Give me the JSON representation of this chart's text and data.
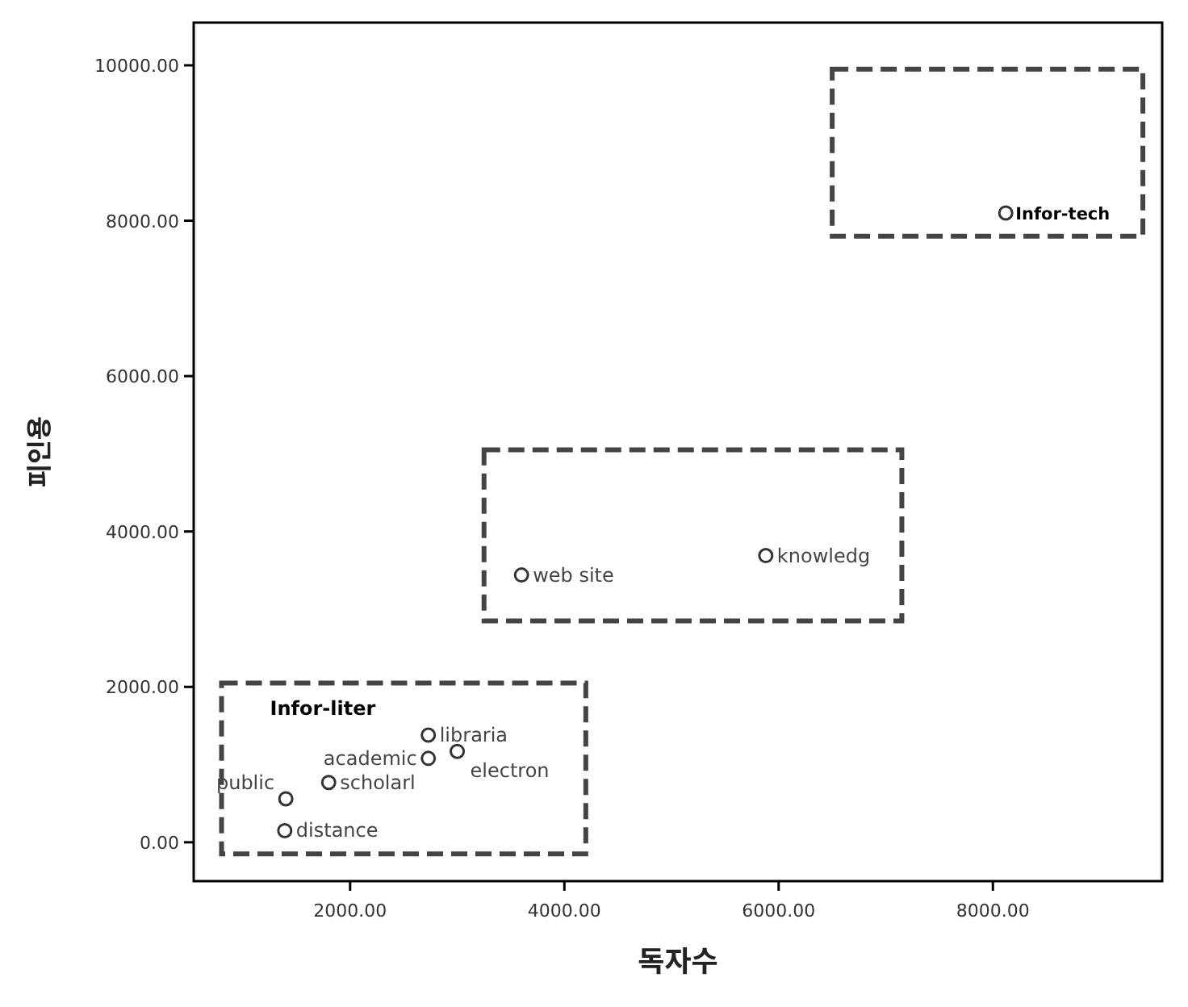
{
  "chart_data": {
    "type": "scatter",
    "xlabel": "독자수",
    "ylabel": "피인용",
    "xlim": [
      540,
      9580
    ],
    "ylim": [
      -500,
      10550
    ],
    "xticks": [
      {
        "value": 2000,
        "label": "2000.00"
      },
      {
        "value": 4000,
        "label": "4000.00"
      },
      {
        "value": 6000,
        "label": "6000.00"
      },
      {
        "value": 8000,
        "label": "8000.00"
      }
    ],
    "yticks": [
      {
        "value": 0,
        "label": "0.00"
      },
      {
        "value": 2000,
        "label": "2000.00"
      },
      {
        "value": 4000,
        "label": "4000.00"
      },
      {
        "value": 6000,
        "label": "6000.00"
      },
      {
        "value": 8000,
        "label": "8000.00"
      },
      {
        "value": 10000,
        "label": "10000.00"
      }
    ],
    "grid": false,
    "marker": "circle",
    "series": [
      {
        "color": "#333333",
        "x": [
          8120,
          3600,
          5880,
          2730,
          2730,
          3000,
          1800,
          1400,
          1390
        ],
        "values": [
          8100,
          3440,
          3690,
          1380,
          1080,
          1170,
          770,
          560,
          150
        ]
      }
    ],
    "annotations": [
      {
        "text": "Infor-tech",
        "x": 8120,
        "y": 8100
      },
      {
        "text": "web site",
        "x": 3600,
        "y": 3440
      },
      {
        "text": "knowledg",
        "x": 5880,
        "y": 3690
      },
      {
        "text": "libraria",
        "x": 2730,
        "y": 1380
      },
      {
        "text": "academic",
        "x": 2730,
        "y": 1080
      },
      {
        "text": "electron",
        "x": 3000,
        "y": 1170
      },
      {
        "text": "scholarl",
        "x": 1800,
        "y": 770
      },
      {
        "text": "public",
        "x": 1400,
        "y": 560
      },
      {
        "text": "distance",
        "x": 1390,
        "y": 150
      },
      "Infor-liter"
    ]
  }
}
